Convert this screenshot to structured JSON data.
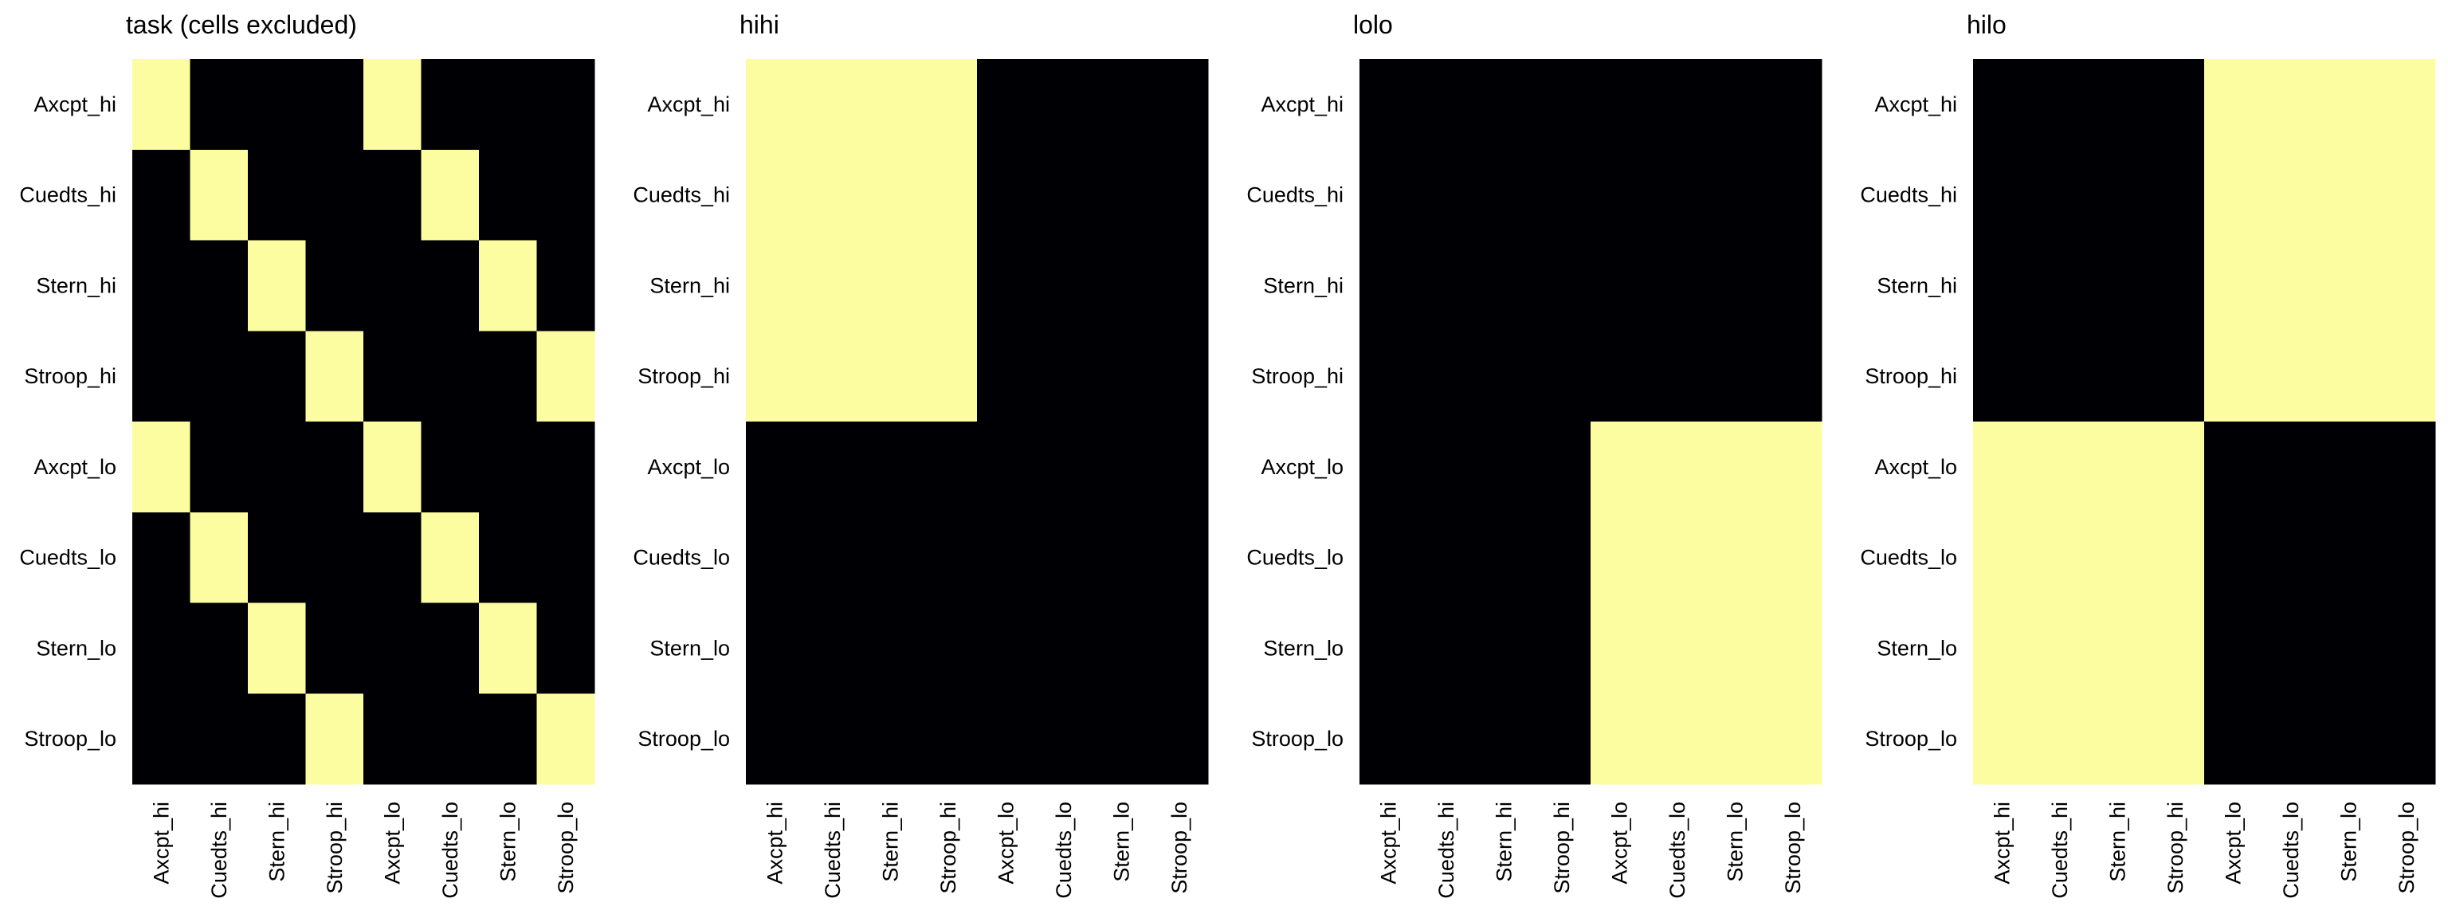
{
  "chart_data": [
    {
      "type": "heatmap",
      "title": "task (cells excluded)",
      "rows": [
        "Axcpt_hi",
        "Cuedts_hi",
        "Stern_hi",
        "Stroop_hi",
        "Axcpt_lo",
        "Cuedts_lo",
        "Stern_lo",
        "Stroop_lo"
      ],
      "cols": [
        "Axcpt_hi",
        "Cuedts_hi",
        "Stern_hi",
        "Stroop_hi",
        "Axcpt_lo",
        "Cuedts_lo",
        "Stern_lo",
        "Stroop_lo"
      ],
      "values": [
        [
          1,
          0,
          0,
          0,
          1,
          0,
          0,
          0
        ],
        [
          0,
          1,
          0,
          0,
          0,
          1,
          0,
          0
        ],
        [
          0,
          0,
          1,
          0,
          0,
          0,
          1,
          0
        ],
        [
          0,
          0,
          0,
          1,
          0,
          0,
          0,
          1
        ],
        [
          1,
          0,
          0,
          0,
          1,
          0,
          0,
          0
        ],
        [
          0,
          1,
          0,
          0,
          0,
          1,
          0,
          0
        ],
        [
          0,
          0,
          1,
          0,
          0,
          0,
          1,
          0
        ],
        [
          0,
          0,
          0,
          1,
          0,
          0,
          0,
          1
        ]
      ],
      "colorbar": false
    },
    {
      "type": "heatmap",
      "title": "hihi",
      "rows": [
        "Axcpt_hi",
        "Cuedts_hi",
        "Stern_hi",
        "Stroop_hi",
        "Axcpt_lo",
        "Cuedts_lo",
        "Stern_lo",
        "Stroop_lo"
      ],
      "cols": [
        "Axcpt_hi",
        "Cuedts_hi",
        "Stern_hi",
        "Stroop_hi",
        "Axcpt_lo",
        "Cuedts_lo",
        "Stern_lo",
        "Stroop_lo"
      ],
      "values": [
        [
          1,
          1,
          1,
          1,
          0,
          0,
          0,
          0
        ],
        [
          1,
          1,
          1,
          1,
          0,
          0,
          0,
          0
        ],
        [
          1,
          1,
          1,
          1,
          0,
          0,
          0,
          0
        ],
        [
          1,
          1,
          1,
          1,
          0,
          0,
          0,
          0
        ],
        [
          0,
          0,
          0,
          0,
          0,
          0,
          0,
          0
        ],
        [
          0,
          0,
          0,
          0,
          0,
          0,
          0,
          0
        ],
        [
          0,
          0,
          0,
          0,
          0,
          0,
          0,
          0
        ],
        [
          0,
          0,
          0,
          0,
          0,
          0,
          0,
          0
        ]
      ],
      "colorbar": false
    },
    {
      "type": "heatmap",
      "title": "lolo",
      "rows": [
        "Axcpt_hi",
        "Cuedts_hi",
        "Stern_hi",
        "Stroop_hi",
        "Axcpt_lo",
        "Cuedts_lo",
        "Stern_lo",
        "Stroop_lo"
      ],
      "cols": [
        "Axcpt_hi",
        "Cuedts_hi",
        "Stern_hi",
        "Stroop_hi",
        "Axcpt_lo",
        "Cuedts_lo",
        "Stern_lo",
        "Stroop_lo"
      ],
      "values": [
        [
          0,
          0,
          0,
          0,
          0,
          0,
          0,
          0
        ],
        [
          0,
          0,
          0,
          0,
          0,
          0,
          0,
          0
        ],
        [
          0,
          0,
          0,
          0,
          0,
          0,
          0,
          0
        ],
        [
          0,
          0,
          0,
          0,
          0,
          0,
          0,
          0
        ],
        [
          0,
          0,
          0,
          0,
          1,
          1,
          1,
          1
        ],
        [
          0,
          0,
          0,
          0,
          1,
          1,
          1,
          1
        ],
        [
          0,
          0,
          0,
          0,
          1,
          1,
          1,
          1
        ],
        [
          0,
          0,
          0,
          0,
          1,
          1,
          1,
          1
        ]
      ],
      "colorbar": false
    },
    {
      "type": "heatmap",
      "title": "hilo",
      "rows": [
        "Axcpt_hi",
        "Cuedts_hi",
        "Stern_hi",
        "Stroop_hi",
        "Axcpt_lo",
        "Cuedts_lo",
        "Stern_lo",
        "Stroop_lo"
      ],
      "cols": [
        "Axcpt_hi",
        "Cuedts_hi",
        "Stern_hi",
        "Stroop_hi",
        "Axcpt_lo",
        "Cuedts_lo",
        "Stern_lo",
        "Stroop_lo"
      ],
      "values": [
        [
          0,
          0,
          0,
          0,
          1,
          1,
          1,
          1
        ],
        [
          0,
          0,
          0,
          0,
          1,
          1,
          1,
          1
        ],
        [
          0,
          0,
          0,
          0,
          1,
          1,
          1,
          1
        ],
        [
          0,
          0,
          0,
          0,
          1,
          1,
          1,
          1
        ],
        [
          1,
          1,
          1,
          1,
          0,
          0,
          0,
          0
        ],
        [
          1,
          1,
          1,
          1,
          0,
          0,
          0,
          0
        ],
        [
          1,
          1,
          1,
          1,
          0,
          0,
          0,
          0
        ],
        [
          1,
          1,
          1,
          1,
          0,
          0,
          0,
          0
        ]
      ],
      "colorbar": false
    }
  ],
  "colors": {
    "high": "#fcfda0",
    "low": "#000004"
  }
}
